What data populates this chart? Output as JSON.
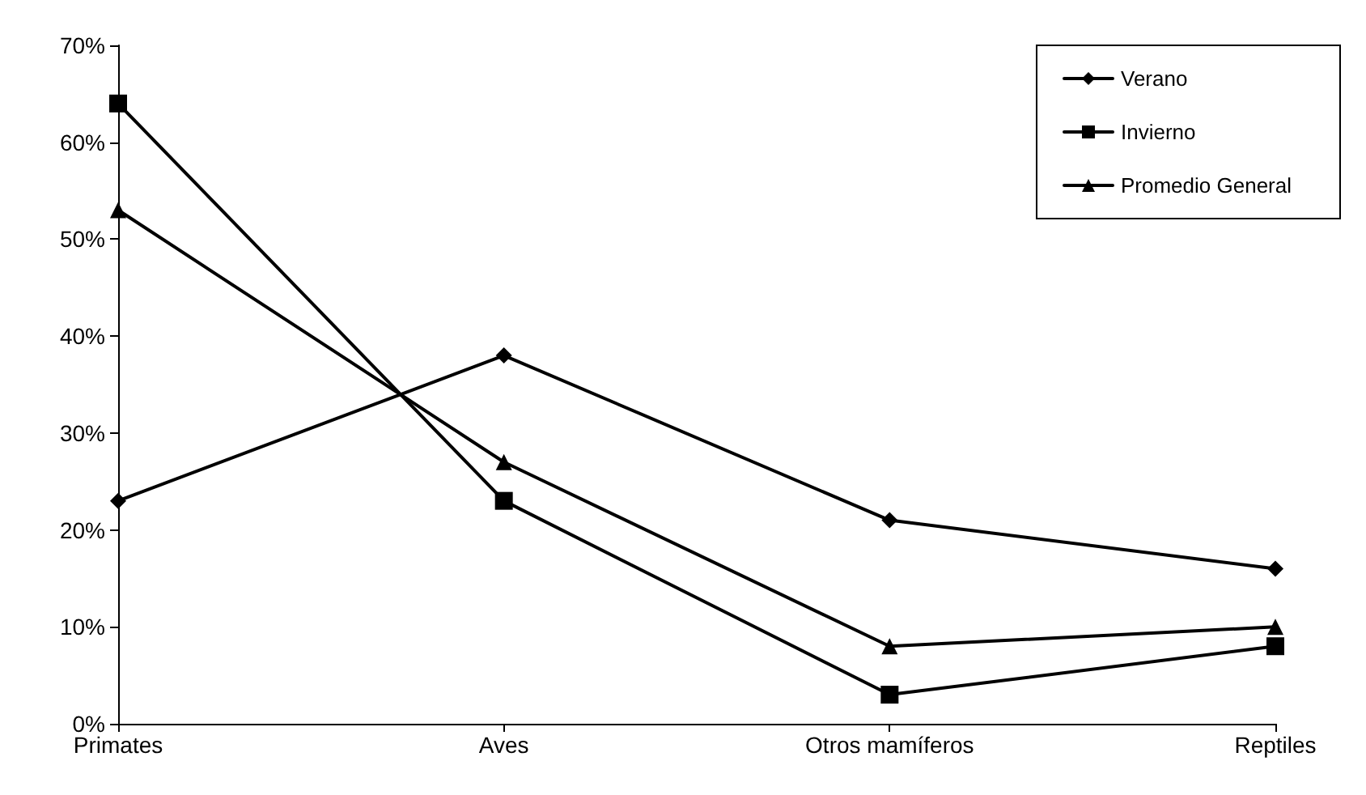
{
  "chart_data": {
    "type": "line",
    "categories": [
      "Primates",
      "Aves",
      "Otros mamíferos",
      "Reptiles"
    ],
    "series": [
      {
        "name": "Verano",
        "color": "#000000",
        "marker": "diamond",
        "values": [
          23,
          38,
          21,
          16
        ]
      },
      {
        "name": "Invierno",
        "color": "#000000",
        "marker": "square",
        "values": [
          64,
          23,
          3,
          8
        ]
      },
      {
        "name": "Promedio General",
        "color": "#000000",
        "marker": "triangle",
        "values": [
          53,
          27,
          8,
          10
        ]
      }
    ],
    "ylim": [
      0,
      70
    ],
    "yticks": [
      {
        "value": 0,
        "label": "0%"
      },
      {
        "value": 10,
        "label": "10%"
      },
      {
        "value": 20,
        "label": "20%"
      },
      {
        "value": 30,
        "label": "30%"
      },
      {
        "value": 40,
        "label": "40%"
      },
      {
        "value": 50,
        "label": "50%"
      },
      {
        "value": 60,
        "label": "60%"
      },
      {
        "value": 70,
        "label": "70%"
      }
    ],
    "grid": false,
    "legend": "top right",
    "line_style": "solid"
  }
}
